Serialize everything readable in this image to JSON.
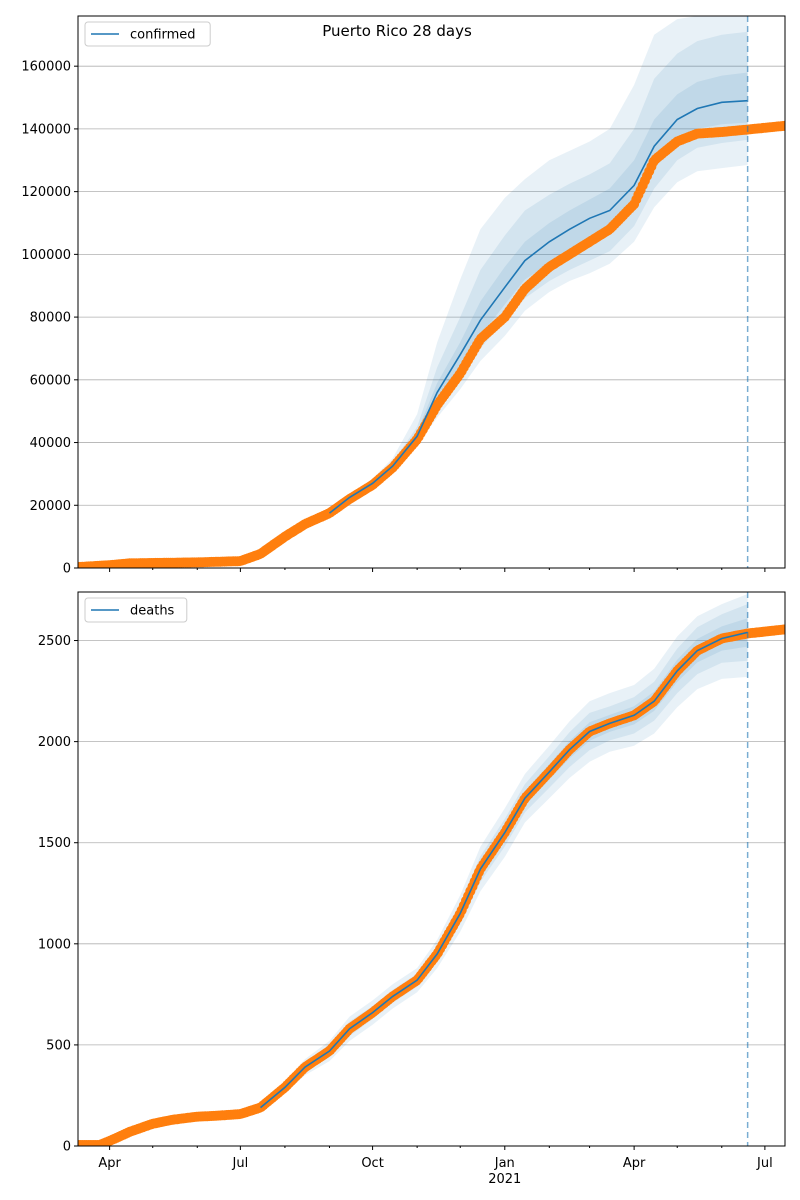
{
  "title": "Puerto Rico 28 days",
  "colors": {
    "model": "#1f77b4",
    "observed": "#ff7f0e",
    "grid": "#b0b0b0",
    "band": "#1f77b4"
  },
  "x_axis": {
    "range": [
      "2020-03-10",
      "2021-07-15"
    ],
    "tick_labels": [
      {
        "date": "2020-04-01",
        "label": "Apr"
      },
      {
        "date": "2020-07-01",
        "label": "Jul"
      },
      {
        "date": "2020-10-01",
        "label": "Oct"
      },
      {
        "date": "2021-01-01",
        "label": "Jan",
        "sublabel": "2021"
      },
      {
        "date": "2021-04-01",
        "label": "Apr"
      },
      {
        "date": "2021-07-01",
        "label": "Jul"
      }
    ],
    "minor_ticks": [
      "2020-05-01",
      "2020-06-01",
      "2020-08-01",
      "2020-09-01",
      "2020-11-01",
      "2020-12-01",
      "2021-02-01",
      "2021-03-01",
      "2021-05-01",
      "2021-06-01"
    ],
    "forecast_date": "2021-06-19"
  },
  "chart_data": [
    {
      "type": "line",
      "legend": "confirmed",
      "legend_position": "upper left",
      "grid": "horizontal",
      "ylim": [
        0,
        176000
      ],
      "yticks": [
        0,
        20000,
        40000,
        60000,
        80000,
        100000,
        120000,
        140000,
        160000
      ],
      "observed": {
        "x": [
          "2020-03-10",
          "2020-04-01",
          "2020-04-15",
          "2020-05-01",
          "2020-06-01",
          "2020-07-01",
          "2020-07-15",
          "2020-08-01",
          "2020-08-15",
          "2020-09-01",
          "2020-09-15",
          "2020-10-01",
          "2020-10-15",
          "2020-11-01",
          "2020-11-15",
          "2020-12-01",
          "2020-12-15",
          "2021-01-01",
          "2021-01-15",
          "2021-02-01",
          "2021-02-15",
          "2021-03-01",
          "2021-03-15",
          "2021-04-01",
          "2021-04-15",
          "2021-05-01",
          "2021-05-15",
          "2021-06-01",
          "2021-06-19",
          "2021-07-15"
        ],
        "y": [
          300,
          900,
          1500,
          1600,
          1800,
          2200,
          4500,
          10000,
          14000,
          17500,
          22000,
          26500,
          32000,
          41000,
          52000,
          62000,
          73000,
          80000,
          89000,
          96000,
          100000,
          104000,
          108000,
          116000,
          130000,
          136000,
          138500,
          139000,
          139800,
          141000
        ]
      },
      "model": {
        "x": [
          "2020-09-01",
          "2020-09-15",
          "2020-10-01",
          "2020-10-15",
          "2020-11-01",
          "2020-11-15",
          "2020-12-01",
          "2020-12-15",
          "2021-01-01",
          "2021-01-15",
          "2021-02-01",
          "2021-02-15",
          "2021-03-01",
          "2021-03-15",
          "2021-04-01",
          "2021-04-15",
          "2021-05-01",
          "2021-05-15",
          "2021-06-01",
          "2021-06-19"
        ],
        "y": [
          17500,
          22500,
          27000,
          32500,
          42000,
          56000,
          68000,
          79000,
          89500,
          98000,
          104000,
          108000,
          111500,
          114000,
          122000,
          134500,
          143000,
          146500,
          148500,
          149000
        ],
        "bands": [
          {
            "lower": [
              17000,
              21500,
              26000,
              31000,
              39000,
              48000,
              57000,
              66000,
              74000,
              82000,
              88000,
              91500,
              94000,
              97000,
              104000,
              115000,
              123000,
              126500,
              127500,
              128500
            ],
            "upper": [
              18000,
              23500,
              28500,
              35000,
              49000,
              72000,
              92000,
              108000,
              118000,
              124000,
              130000,
              133000,
              136000,
              140000,
              154000,
              170000,
              175000,
              176000,
              176000,
              176000
            ]
          },
          {
            "lower": [
              17200,
              21800,
              26400,
              31600,
              40500,
              51000,
              61000,
              70000,
              79000,
              86000,
              91500,
              95000,
              98000,
              101000,
              109000,
              121000,
              130000,
              134000,
              135500,
              136500
            ],
            "upper": [
              17800,
              23200,
              27800,
              33800,
              45000,
              64000,
              80000,
              95000,
              106000,
              114000,
              119000,
              122500,
              125500,
              129000,
              140000,
              156000,
              164000,
              168000,
              170000,
              171000
            ]
          },
          {
            "lower": [
              17350,
              22100,
              26700,
              32000,
              41200,
              53500,
              64500,
              74000,
              84000,
              92000,
              97000,
              101000,
              104000,
              107000,
              115000,
              127500,
              136000,
              140000,
              141500,
              142000
            ],
            "upper": [
              17650,
              22900,
              27400,
              33100,
              43500,
              59000,
              72000,
              85000,
              96000,
              104000,
              110000,
              114000,
              117500,
              121000,
              130000,
              143000,
              151000,
              155000,
              157000,
              158000
            ]
          }
        ]
      }
    },
    {
      "type": "line",
      "legend": "deaths",
      "legend_position": "upper left",
      "grid": "horizontal",
      "ylim": [
        0,
        2740
      ],
      "yticks": [
        0,
        500,
        1000,
        1500,
        2000,
        2500
      ],
      "observed": {
        "x": [
          "2020-03-10",
          "2020-03-25",
          "2020-04-01",
          "2020-04-15",
          "2020-05-01",
          "2020-05-15",
          "2020-06-01",
          "2020-06-15",
          "2020-07-01",
          "2020-07-15",
          "2020-08-01",
          "2020-08-15",
          "2020-09-01",
          "2020-09-15",
          "2020-10-01",
          "2020-10-15",
          "2020-11-01",
          "2020-11-15",
          "2020-12-01",
          "2020-12-15",
          "2021-01-01",
          "2021-01-15",
          "2021-02-01",
          "2021-02-15",
          "2021-03-01",
          "2021-03-15",
          "2021-04-01",
          "2021-04-15",
          "2021-05-01",
          "2021-05-15",
          "2021-06-01",
          "2021-06-19",
          "2021-07-15"
        ],
        "y": [
          5,
          5,
          25,
          70,
          110,
          130,
          145,
          150,
          158,
          190,
          290,
          390,
          470,
          580,
          660,
          740,
          820,
          950,
          1150,
          1370,
          1550,
          1720,
          1850,
          1960,
          2050,
          2090,
          2130,
          2200,
          2350,
          2450,
          2510,
          2535,
          2555
        ]
      },
      "model": {
        "x": [
          "2020-07-15",
          "2020-08-01",
          "2020-08-15",
          "2020-09-01",
          "2020-09-15",
          "2020-10-01",
          "2020-10-15",
          "2020-11-01",
          "2020-11-15",
          "2020-12-01",
          "2020-12-15",
          "2021-01-01",
          "2021-01-15",
          "2021-02-01",
          "2021-02-15",
          "2021-03-01",
          "2021-03-15",
          "2021-04-01",
          "2021-04-15",
          "2021-05-01",
          "2021-05-15",
          "2021-06-01",
          "2021-06-19"
        ],
        "y": [
          190,
          290,
          390,
          470,
          580,
          660,
          740,
          820,
          950,
          1150,
          1370,
          1550,
          1720,
          1850,
          1960,
          2050,
          2090,
          2130,
          2200,
          2350,
          2450,
          2510,
          2540
        ],
        "bands": [
          {
            "lower": [
              170,
              260,
              350,
              420,
              520,
              600,
              680,
              760,
              880,
              1060,
              1260,
              1430,
              1600,
              1720,
              1820,
              1900,
              1950,
              1980,
              2040,
              2170,
              2260,
              2310,
              2320
            ],
            "upper": [
              210,
              320,
              430,
              520,
              640,
              720,
              800,
              880,
              1020,
              1240,
              1480,
              1670,
              1840,
              1980,
              2100,
              2200,
              2240,
              2280,
              2360,
              2520,
              2620,
              2680,
              2730
            ]
          },
          {
            "lower": [
              178,
              272,
              366,
              440,
              544,
              628,
              708,
              788,
              912,
              1098,
              1306,
              1482,
              1650,
              1772,
              1874,
              1958,
              2006,
              2040,
              2104,
              2240,
              2334,
              2390,
              2400
            ],
            "upper": [
              202,
              308,
              414,
              500,
              616,
              692,
              772,
              852,
              988,
              1202,
              1434,
              1618,
              1790,
              1928,
              2046,
              2142,
              2174,
              2220,
              2296,
              2460,
              2566,
              2630,
              2680
            ]
          },
          {
            "lower": [
              184,
              281,
              378,
              455,
              562,
              644,
              724,
              804,
              931,
              1124,
              1338,
              1516,
              1685,
              1811,
              1917,
              2004,
              2048,
              2085,
              2152,
              2295,
              2392,
              2450,
              2470
            ],
            "upper": [
              196,
              299,
              402,
              485,
              598,
              676,
              756,
              836,
              969,
              1176,
              1402,
              1584,
              1755,
              1889,
              2003,
              2096,
              2132,
              2175,
              2248,
              2405,
              2508,
              2570,
              2610
            ]
          }
        ]
      }
    }
  ]
}
